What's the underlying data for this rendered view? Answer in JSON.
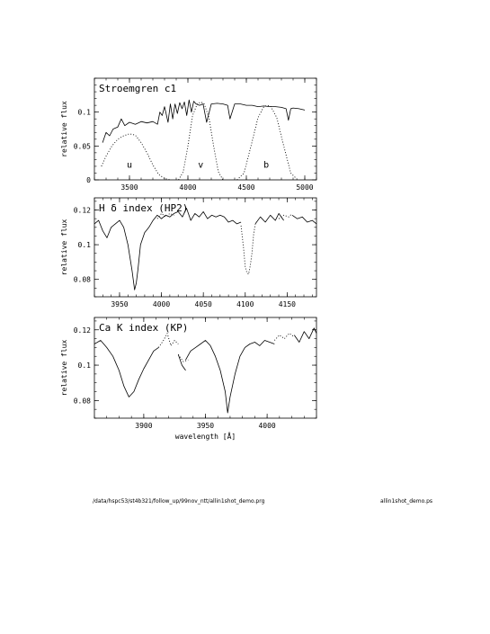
{
  "chart_data": [
    {
      "type": "line",
      "title": "Stroemgren c1",
      "xlabel": "",
      "ylabel": "relative flux",
      "xlim": [
        3200,
        5100
      ],
      "ylim": [
        0,
        0.15
      ],
      "xticks": [
        3500,
        4000,
        4500,
        5000
      ],
      "xtick_labels": [
        "3500",
        "4000",
        "4500",
        "5000"
      ],
      "yticks": [
        0,
        0.05,
        0.1
      ],
      "ytick_labels": [
        "0",
        "0.05",
        "0.1"
      ],
      "grid": false,
      "annotations": [
        {
          "text": "u",
          "x": 3500,
          "y": 0.018
        },
        {
          "text": "v",
          "x": 4110,
          "y": 0.018
        },
        {
          "text": "b",
          "x": 4670,
          "y": 0.018
        }
      ],
      "series": [
        {
          "style": "solid",
          "x": [
            3270,
            3300,
            3330,
            3360,
            3400,
            3430,
            3460,
            3500,
            3550,
            3600,
            3650,
            3700,
            3740,
            3760,
            3780,
            3800,
            3830,
            3850,
            3870,
            3890,
            3910,
            3930,
            3950,
            3970,
            3990,
            4010,
            4030,
            4050,
            4070,
            4100,
            4130,
            4160,
            4200,
            4250,
            4300,
            4340,
            4360,
            4400,
            4450,
            4500,
            4550,
            4600,
            4650,
            4700,
            4750,
            4800,
            4840,
            4860,
            4880,
            4900,
            4950,
            5000
          ],
          "y": [
            0.055,
            0.07,
            0.065,
            0.075,
            0.078,
            0.09,
            0.08,
            0.085,
            0.082,
            0.086,
            0.084,
            0.086,
            0.082,
            0.1,
            0.095,
            0.108,
            0.085,
            0.112,
            0.09,
            0.112,
            0.098,
            0.114,
            0.105,
            0.115,
            0.095,
            0.118,
            0.1,
            0.116,
            0.112,
            0.11,
            0.112,
            0.085,
            0.112,
            0.113,
            0.112,
            0.11,
            0.09,
            0.112,
            0.112,
            0.11,
            0.11,
            0.108,
            0.109,
            0.108,
            0.108,
            0.107,
            0.105,
            0.088,
            0.105,
            0.106,
            0.105,
            0.103
          ]
        },
        {
          "style": "dotted",
          "x": [
            3260,
            3300,
            3350,
            3400,
            3450,
            3500,
            3550,
            3600,
            3650,
            3700,
            3750,
            3800,
            3850
          ],
          "y": [
            0.02,
            0.035,
            0.05,
            0.06,
            0.065,
            0.068,
            0.066,
            0.055,
            0.04,
            0.022,
            0.008,
            0.002,
            0.0
          ]
        },
        {
          "style": "dotted",
          "x": [
            3920,
            3960,
            4000,
            4040,
            4080,
            4110,
            4140,
            4180,
            4220,
            4260,
            4300
          ],
          "y": [
            0.0,
            0.012,
            0.05,
            0.095,
            0.112,
            0.115,
            0.112,
            0.092,
            0.05,
            0.012,
            0.0
          ]
        },
        {
          "style": "dotted",
          "x": [
            4420,
            4480,
            4540,
            4600,
            4650,
            4680,
            4710,
            4760,
            4820,
            4880,
            4940
          ],
          "y": [
            0.0,
            0.01,
            0.05,
            0.092,
            0.108,
            0.11,
            0.108,
            0.092,
            0.05,
            0.01,
            0.0
          ]
        }
      ]
    },
    {
      "type": "line",
      "title": "H δ index (HP2)",
      "xlabel": "",
      "ylabel": "relative flux",
      "xlim": [
        3920,
        4185
      ],
      "ylim": [
        0.07,
        0.127
      ],
      "xticks": [
        3950,
        4000,
        4050,
        4100,
        4150
      ],
      "xtick_labels": [
        "3950",
        "4000",
        "4050",
        "4100",
        "4150"
      ],
      "yticks": [
        0.08,
        0.1,
        0.12
      ],
      "ytick_labels": [
        "0.08",
        "0.1",
        "0.12"
      ],
      "grid": false,
      "series": [
        {
          "style": "solid",
          "x": [
            3920,
            3925,
            3930,
            3935,
            3940,
            3945,
            3950,
            3955,
            3960,
            3965,
            3968,
            3970,
            3972,
            3975,
            3980,
            3985,
            3990,
            3995,
            4000,
            4005,
            4010,
            4015,
            4020
          ],
          "y": [
            0.112,
            0.114,
            0.108,
            0.104,
            0.11,
            0.112,
            0.114,
            0.11,
            0.1,
            0.085,
            0.074,
            0.078,
            0.086,
            0.1,
            0.107,
            0.11,
            0.114,
            0.117,
            0.115,
            0.117,
            0.116,
            0.118,
            0.119
          ]
        },
        {
          "style": "dotted",
          "x": [
            3995,
            4000,
            4005,
            4010,
            4015
          ],
          "y": [
            0.115,
            0.118,
            0.116,
            0.118,
            0.117
          ]
        },
        {
          "style": "solid",
          "x": [
            4020,
            4025,
            4030,
            4035,
            4040,
            4045,
            4050,
            4055,
            4060,
            4065,
            4070,
            4075,
            4080,
            4085,
            4090,
            4095
          ],
          "y": [
            0.119,
            0.116,
            0.121,
            0.114,
            0.118,
            0.116,
            0.119,
            0.115,
            0.117,
            0.116,
            0.117,
            0.116,
            0.113,
            0.114,
            0.112,
            0.113
          ]
        },
        {
          "style": "dotted",
          "x": [
            4095,
            4098,
            4100,
            4102,
            4104,
            4106,
            4108,
            4110,
            4112
          ],
          "y": [
            0.111,
            0.098,
            0.087,
            0.084,
            0.083,
            0.088,
            0.095,
            0.106,
            0.112
          ]
        },
        {
          "style": "solid",
          "x": [
            4112,
            4118,
            4124,
            4130,
            4136,
            4140,
            4146
          ],
          "y": [
            0.112,
            0.116,
            0.113,
            0.117,
            0.114,
            0.118,
            0.114
          ]
        },
        {
          "style": "dotted",
          "x": [
            4140,
            4146,
            4152,
            4156
          ],
          "y": [
            0.115,
            0.117,
            0.116,
            0.118
          ]
        },
        {
          "style": "solid",
          "x": [
            4156,
            4162,
            4168,
            4174,
            4180,
            4185
          ],
          "y": [
            0.117,
            0.115,
            0.116,
            0.113,
            0.114,
            0.112
          ]
        }
      ]
    },
    {
      "type": "line",
      "title": "Ca K index (KP)",
      "xlabel": "wavelength [Å]",
      "ylabel": "relative flux",
      "xlim": [
        3860,
        4040
      ],
      "ylim": [
        0.07,
        0.127
      ],
      "xticks": [
        3900,
        3950,
        4000
      ],
      "xtick_labels": [
        "3900",
        "3950",
        "4000"
      ],
      "yticks": [
        0.08,
        0.1,
        0.12
      ],
      "ytick_labels": [
        "0.08",
        "0.1",
        "0.12"
      ],
      "grid": false,
      "series": [
        {
          "style": "solid",
          "x": [
            3860,
            3865,
            3870,
            3875,
            3880,
            3884,
            3888,
            3892,
            3896,
            3900,
            3904,
            3908,
            3912
          ],
          "y": [
            0.112,
            0.114,
            0.11,
            0.105,
            0.097,
            0.088,
            0.082,
            0.085,
            0.092,
            0.098,
            0.103,
            0.108,
            0.11
          ]
        },
        {
          "style": "dotted",
          "x": [
            3912,
            3916,
            3919,
            3922,
            3925,
            3928
          ],
          "y": [
            0.11,
            0.114,
            0.118,
            0.111,
            0.114,
            0.112
          ]
        },
        {
          "style": "solid",
          "x": [
            3928,
            3931,
            3934
          ],
          "y": [
            0.106,
            0.1,
            0.097
          ]
        },
        {
          "style": "dotted",
          "x": [
            3928,
            3932,
            3936
          ],
          "y": [
            0.106,
            0.102,
            0.103
          ]
        },
        {
          "style": "solid",
          "x": [
            3934,
            3938,
            3942,
            3946,
            3950,
            3954,
            3958,
            3962,
            3966,
            3968,
            3970,
            3974,
            3978,
            3982,
            3986,
            3990,
            3994,
            3998,
            4002,
            4006
          ],
          "y": [
            0.103,
            0.108,
            0.11,
            0.112,
            0.114,
            0.111,
            0.105,
            0.097,
            0.085,
            0.073,
            0.082,
            0.095,
            0.105,
            0.11,
            0.112,
            0.113,
            0.111,
            0.114,
            0.113,
            0.112
          ]
        },
        {
          "style": "dotted",
          "x": [
            4006,
            4010,
            4014,
            4018,
            4022
          ],
          "y": [
            0.114,
            0.117,
            0.115,
            0.118,
            0.116
          ]
        },
        {
          "style": "solid",
          "x": [
            4022,
            4026,
            4030,
            4034,
            4038,
            4040
          ],
          "y": [
            0.117,
            0.113,
            0.119,
            0.115,
            0.121,
            0.118
          ]
        }
      ]
    }
  ],
  "footer": {
    "path": "/data/hspc53/st4b321/follow_up/99nov_ntt/allin1shot_demo.prg",
    "filename": "allin1shot_demo.ps"
  }
}
